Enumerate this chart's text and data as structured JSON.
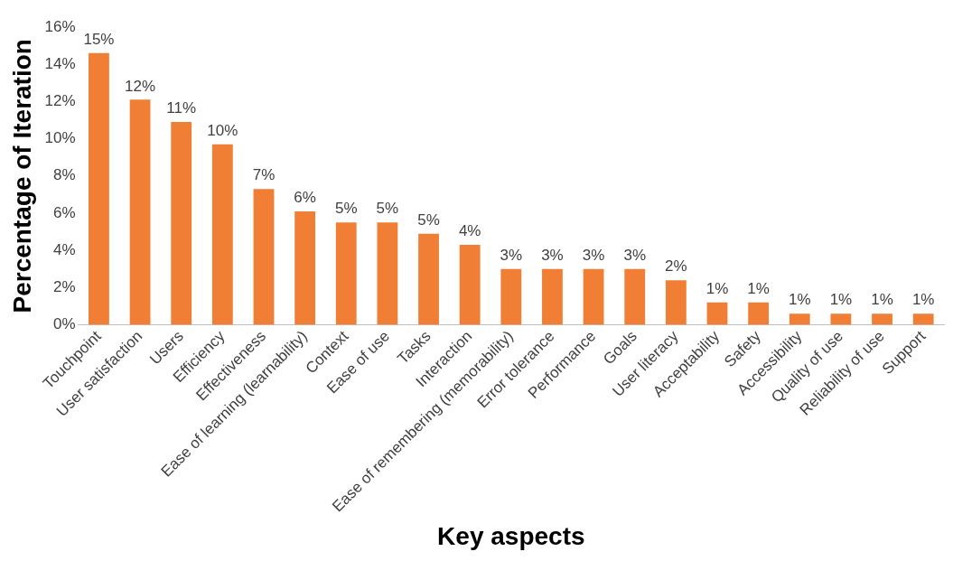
{
  "chart_data": {
    "type": "bar",
    "xlabel": "Key aspects",
    "ylabel": "Percentage of Iteration",
    "categories": [
      "Touchpoint",
      "User satisfaction",
      "Users",
      "Efficiency",
      "Effectiveness",
      "Ease of learning (learnability)",
      "Context",
      "Ease of use",
      "Tasks",
      "Interaction",
      "Ease of remembering (memorability)",
      "Error tolerance",
      "Performance",
      "Goals",
      "User literacy",
      "Acceptability",
      "Safety",
      "Accessibility",
      "Quality of use",
      "Reliability of use",
      "Support"
    ],
    "values": [
      14.6,
      12.1,
      10.9,
      9.7,
      7.3,
      6.1,
      5.5,
      5.5,
      4.9,
      4.3,
      3.0,
      3.0,
      3.0,
      3.0,
      2.4,
      1.2,
      1.2,
      0.6,
      0.6,
      0.6,
      0.6
    ],
    "value_labels": [
      "15%",
      "12%",
      "11%",
      "10%",
      "7%",
      "6%",
      "5%",
      "5%",
      "5%",
      "4%",
      "3%",
      "3%",
      "3%",
      "3%",
      "2%",
      "1%",
      "1%",
      "1%",
      "1%",
      "1%",
      "1%"
    ],
    "color": "#f07f35",
    "ylim": [
      0,
      16
    ],
    "yticks": [
      {
        "value": 0,
        "label": "0%"
      },
      {
        "value": 2,
        "label": "2%"
      },
      {
        "value": 4,
        "label": "4%"
      },
      {
        "value": 6,
        "label": "6%"
      },
      {
        "value": 8,
        "label": "8%"
      },
      {
        "value": 10,
        "label": "10%"
      },
      {
        "value": 12,
        "label": "12%"
      },
      {
        "value": 14,
        "label": "14%"
      },
      {
        "value": 16,
        "label": "16%"
      }
    ],
    "grid": false,
    "legend": false
  }
}
